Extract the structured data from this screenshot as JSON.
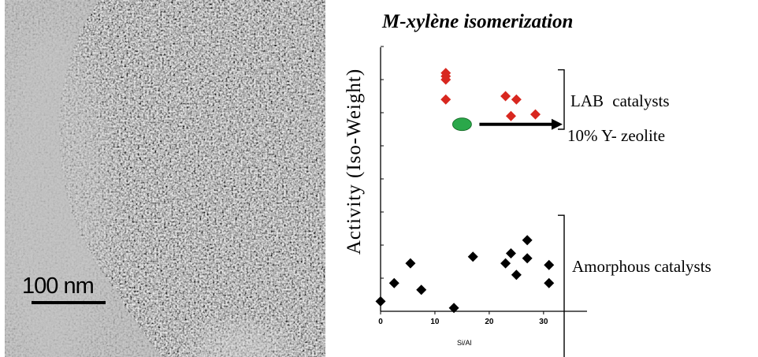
{
  "figure": {
    "scale_bar_label": "100 nm"
  },
  "chart_data": {
    "type": "scatter",
    "title": "M-xylène isomerization",
    "xlabel": "Si/Al",
    "ylabel": "Activity   (Iso-Weight)",
    "xlim": [
      0,
      38
    ],
    "xticks": [
      0,
      10,
      20,
      30
    ],
    "grid": false,
    "y_tick_count": 8,
    "series": [
      {
        "color": "#d8271f",
        "marker": "diamond",
        "points": [
          [
            12,
            7.2
          ],
          [
            12,
            7.1
          ],
          [
            12,
            7.0
          ],
          [
            12,
            6.4
          ],
          [
            23,
            6.5
          ],
          [
            25,
            6.4
          ],
          [
            24,
            5.9
          ],
          [
            28.5,
            5.95
          ]
        ]
      },
      {
        "color": "#2aa84a",
        "marker": "ellipse",
        "points": [
          [
            15,
            5.65
          ]
        ]
      },
      {
        "color": "#000000",
        "marker": "diamond",
        "points": [
          [
            0,
            0.3
          ],
          [
            2.5,
            0.85
          ],
          [
            5.5,
            1.45
          ],
          [
            7.5,
            0.65
          ],
          [
            13.5,
            0.1
          ],
          [
            17,
            1.65
          ],
          [
            23,
            1.45
          ],
          [
            24,
            1.75
          ],
          [
            25,
            1.1
          ],
          [
            27,
            2.15
          ],
          [
            27,
            1.6
          ],
          [
            31,
            0.85
          ],
          [
            31,
            1.4
          ]
        ]
      }
    ],
    "annotations": [
      {
        "text": "LAB  catalysts",
        "bracket": "right"
      },
      {
        "text": "10% Y- zeolite",
        "arrow_from": [
          15,
          5.65
        ]
      },
      {
        "text": "Amorphous catalysts",
        "bracket": "right"
      }
    ]
  }
}
